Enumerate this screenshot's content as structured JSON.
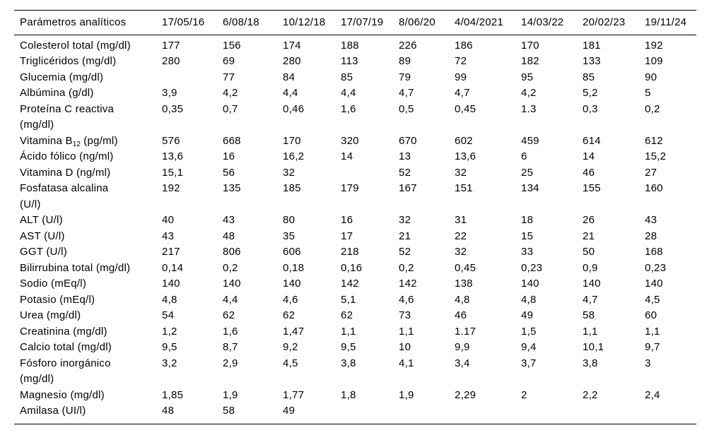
{
  "colors": {
    "background": "#ffffff",
    "text": "#000000",
    "rule": "#000000"
  },
  "table": {
    "header": [
      "Parámetros analíticos",
      "17/05/16",
      "6/08/18",
      "10/12/18",
      "17/07/19",
      "8/06/20",
      "4/04/2021",
      "14/03/22",
      "20/02/23",
      "19/11/24"
    ],
    "rows": [
      {
        "label_lines": [
          "Colesterol total (mg/dl)"
        ],
        "values": [
          "177",
          "156",
          "174",
          "188",
          "226",
          "186",
          "170",
          "181",
          "192"
        ]
      },
      {
        "label_lines": [
          "Triglicéridos (mg/dl)"
        ],
        "values": [
          "280",
          "69",
          "280",
          "113",
          "89",
          "72",
          "182",
          "133",
          "109"
        ]
      },
      {
        "label_lines": [
          "Glucemia (mg/dl)"
        ],
        "values": [
          "",
          "77",
          "84",
          "85",
          "79",
          "99",
          "95",
          "85",
          "90"
        ]
      },
      {
        "label_lines": [
          "Albúmina (g/dl)"
        ],
        "values": [
          "3,9",
          "4,2",
          "4,4",
          "4,4",
          "4,7",
          "4,7",
          "4,2",
          "5,2",
          "5"
        ]
      },
      {
        "label_lines": [
          "Proteína C reactiva",
          "(mg/dl)"
        ],
        "values": [
          "0,35",
          "0,7",
          "0,46",
          "1,6",
          "0,5",
          "0,45",
          "1.3",
          "0,3",
          "0,2"
        ]
      },
      {
        "label_rich": [
          {
            "t": "Vitamina B"
          },
          {
            "t": "12",
            "sub": true
          },
          {
            "t": " (pg/ml)"
          }
        ],
        "values": [
          "576",
          "668",
          "170",
          "320",
          "670",
          "602",
          "459",
          "614",
          "612"
        ]
      },
      {
        "label_lines": [
          "Ácido fólico (ng/ml)"
        ],
        "values": [
          "13,6",
          "16",
          "16,2",
          "14",
          "13",
          "13,6",
          "6",
          "14",
          "15,2"
        ]
      },
      {
        "label_lines": [
          "Vitamina D (ng/ml)"
        ],
        "values": [
          "15,1",
          "56",
          "32",
          "",
          "52",
          "32",
          "25",
          "46",
          "27"
        ]
      },
      {
        "label_lines": [
          "Fosfatasa alcalina",
          "(U/l)"
        ],
        "values": [
          "192",
          "135",
          "185",
          "179",
          "167",
          "151",
          "134",
          "155",
          "160"
        ]
      },
      {
        "label_lines": [
          "ALT (U/l)"
        ],
        "values": [
          "40",
          "43",
          "80",
          "16",
          "32",
          "31",
          "18",
          "26",
          "43"
        ]
      },
      {
        "label_lines": [
          "AST (U/l)"
        ],
        "values": [
          "43",
          "48",
          "35",
          "17",
          "21",
          "22",
          "15",
          "21",
          "28"
        ]
      },
      {
        "label_lines": [
          "GGT (U/l)"
        ],
        "values": [
          "217",
          "806",
          "606",
          "218",
          "52",
          "32",
          "33",
          "50",
          "168"
        ]
      },
      {
        "label_lines": [
          "Bilirrubina total (mg/dl)"
        ],
        "values": [
          "0,14",
          "0,2",
          "0,18",
          "0,16",
          "0,2",
          "0,45",
          "0,23",
          "0,9",
          "0,23"
        ]
      },
      {
        "label_lines": [
          "Sodio (mEq/l)"
        ],
        "values": [
          "140",
          "140",
          "140",
          "142",
          "142",
          "138",
          "140",
          "140",
          "140"
        ]
      },
      {
        "label_lines": [
          "Potasio (mEq/l)"
        ],
        "values": [
          "4,8",
          "4,4",
          "4,6",
          "5,1",
          "4,6",
          "4,8",
          "4,8",
          "4,7",
          "4,5"
        ]
      },
      {
        "label_lines": [
          "Urea (mg/dl)"
        ],
        "values": [
          "54",
          "62",
          "62",
          "62",
          "73",
          "46",
          "49",
          "58",
          "60"
        ]
      },
      {
        "label_lines": [
          "Creatinina (mg/dl)"
        ],
        "values": [
          "1,2",
          "1,6",
          "1,47",
          "1,1",
          "1,1",
          "1.17",
          "1,5",
          "1,1",
          "1,1"
        ]
      },
      {
        "label_lines": [
          "Calcio total (mg/dl)"
        ],
        "values": [
          "9,5",
          "8,7",
          "9,2",
          "9,5",
          "10",
          "9,9",
          "9,4",
          "10,1",
          "9,7"
        ]
      },
      {
        "label_lines": [
          "Fósforo inorgánico",
          "(mg/dl)"
        ],
        "values": [
          "3,2",
          "2,9",
          "4,5",
          "3,8",
          "4,1",
          "3,4",
          "3,7",
          "3,8",
          "3"
        ]
      },
      {
        "label_lines": [
          "Magnesio (mg/dl)"
        ],
        "values": [
          "1,85",
          "1,9",
          "1,77",
          "1,8",
          "1,9",
          "2,29",
          "2",
          "2,2",
          "2,4"
        ]
      },
      {
        "label_lines": [
          "Amilasa (UI/l)"
        ],
        "values": [
          "48",
          "58",
          "49",
          "",
          "",
          "",
          "",
          "",
          ""
        ]
      }
    ]
  }
}
